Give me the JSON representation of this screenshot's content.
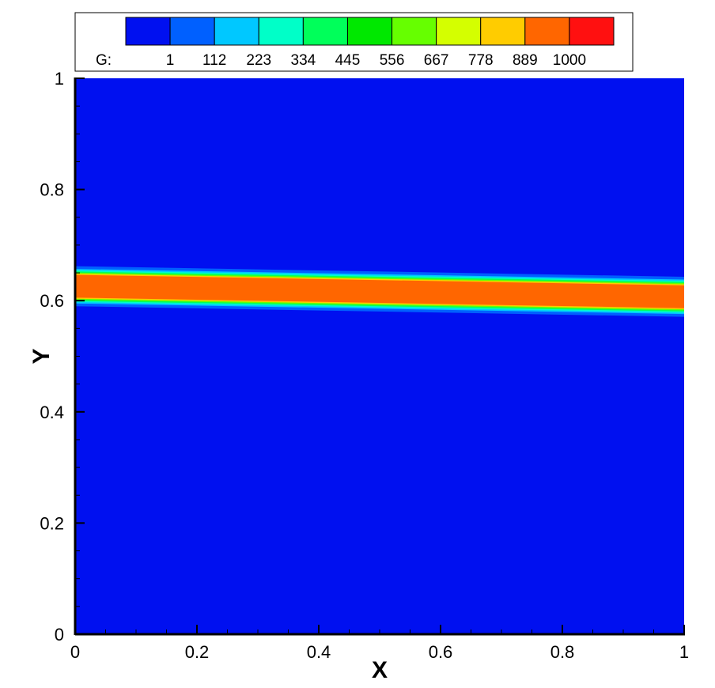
{
  "chart_data": {
    "type": "heatmap",
    "title": "",
    "xlabel": "X",
    "ylabel": "Y",
    "xlim": [
      0,
      1
    ],
    "ylim": [
      0,
      1
    ],
    "x_ticks": [
      "0",
      "0.2",
      "0.4",
      "0.6",
      "0.8",
      "1"
    ],
    "y_ticks": [
      "0",
      "0.2",
      "0.4",
      "0.6",
      "0.8",
      "1"
    ],
    "grid": false,
    "variable": "G",
    "legend": {
      "placement": "top",
      "title": "G:",
      "levels": [
        "1",
        "112",
        "223",
        "334",
        "445",
        "556",
        "667",
        "778",
        "889",
        "1000"
      ],
      "colors": [
        "#0010f0",
        "#0060ff",
        "#00c8ff",
        "#00ffc8",
        "#00ff5a",
        "#00e800",
        "#66ff00",
        "#d4ff00",
        "#ffcc00",
        "#ff6600",
        "#ff1010"
      ]
    },
    "background_value": 1,
    "band": {
      "description_free": true,
      "core_value": 889,
      "centerline_y_at_x0": 0.626,
      "centerline_y_at_x1": 0.607,
      "core_halfwidth": 0.0205,
      "gradient_layers": [
        {
          "level_color_index": 8,
          "halfwidth": 0.0225
        },
        {
          "level_color_index": 6,
          "halfwidth": 0.0245
        },
        {
          "level_color_index": 4,
          "halfwidth": 0.0265
        },
        {
          "level_color_index": 3,
          "halfwidth": 0.0285
        },
        {
          "level_color_index": 2,
          "halfwidth": 0.031
        },
        {
          "level_color_index": 1,
          "halfwidth": 0.036
        }
      ]
    }
  }
}
